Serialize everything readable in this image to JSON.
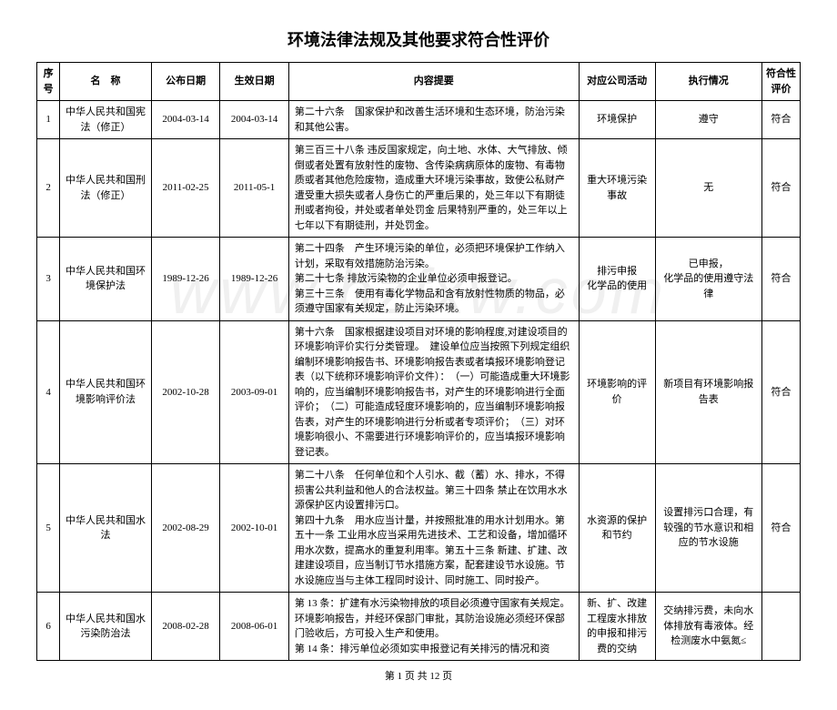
{
  "title": "环境法律法规及其他要求符合性评价",
  "watermark": "www.bzfxw.com",
  "columns": {
    "c1": "序号",
    "c2": "名　称",
    "c3": "公布日期",
    "c4": "生效日期",
    "c5": "内容提要",
    "c6": "对应公司活动",
    "c7": "执行情况",
    "c8": "符合性评价"
  },
  "widths": {
    "c1": "3%",
    "c2": "12%",
    "c3": "9%",
    "c4": "9%",
    "c5": "38%",
    "c6": "10%",
    "c7": "14%",
    "c8": "5%"
  },
  "rows": [
    {
      "no": "1",
      "name": "中华人民共和国宪法（修正）",
      "pub": "2004-03-14",
      "eff": "2004-03-14",
      "content": "第二十六条　国家保护和改善生活环境和生态环境，防治污染和其他公害。",
      "activity": "环境保护",
      "status": "遵守",
      "eval": "符合"
    },
    {
      "no": "2",
      "name": "中华人民共和国刑法（修正）",
      "pub": "2011-02-25",
      "eff": "2011-05-1",
      "content": "第三百三十八条 违反国家规定，向土地、水体、大气排放、倾倒或者处置有放射性的废物、含传染病病原体的废物、有毒物质或者其他危险废物，造成重大环境污染事故，致使公私财产遭受重大损失或者人身伤亡的严重后果的，处三年以下有期徒刑或者拘役，并处或者单处罚金 后果特别严重的，处三年以上七年以下有期徒刑，并处罚金。",
      "activity": "重大环境污染事故",
      "status": "无",
      "eval": "符合"
    },
    {
      "no": "3",
      "name": "中华人民共和国环境保护法",
      "pub": "1989-12-26",
      "eff": "1989-12-26",
      "content": "第二十四条　产生环境污染的单位，必须把环境保护工作纳入计划，采取有效措施防治污染。\n第二十七条 排放污染物的企业单位必须申报登记。\n第三十三条　使用有毒化学物品和含有放射性物质的物品，必须遵守国家有关规定，防止污染环境。",
      "activity": "排污申报\n化学品的使用",
      "status": "已申报，\n化学品的使用遵守法律",
      "eval": "符合"
    },
    {
      "no": "4",
      "name": "中华人民共和国环境影响评价法",
      "pub": "2002-10-28",
      "eff": "2003-09-01",
      "content": "第十六条　国家根据建设项目对环境的影响程度,对建设项目的环境影响评价实行分类管理。　建设单位应当按照下列规定组织编制环境影响报告书、环境影响报告表或者填报环境影响登记表（以下统称环境影响评价文件）：　（一）可能造成重大环境影响的，应当编制环境影响报告书，对产生的环境影响进行全面评价；　（二）可能造成轻度环境影响的，应当编制环境影响报告表，对产生的环境影响进行分析或者专项评价；　（三）对环境影响很小、不需要进行环境影响评价的，应当填报环境影响登记表。",
      "activity": "环境影响的评价",
      "status": "新项目有环境影响报告表",
      "eval": "符合"
    },
    {
      "no": "5",
      "name": "中华人民共和国水法",
      "pub": "2002-08-29",
      "eff": "2002-10-01",
      "content": "第二十八条　任何单位和个人引水、截（蓄）水、排水，不得损害公共利益和他人的合法权益。第三十四条 禁止在饮用水水源保护区内设置排污口。\n第四十九条　用水应当计量，并按照批准的用水计划用水。第五十一条 工业用水应当采用先进技术、工艺和设备，增加循环用水次数，提高水的重复利用率。第五十三条 新建、扩建、改建建设项目，应当制订节水措施方案，配套建设节水设施。节水设施应当与主体工程同时设计、同时施工、同时投产。",
      "activity": "水资源的保护和节约",
      "status": "设置排污口合理，有较强的节水意识和相应的节水设施",
      "eval": "符合"
    },
    {
      "no": "6",
      "name": "中华人民共和国水污染防治法",
      "pub": "2008-02-28",
      "eff": "2008-06-01",
      "content": "第 13 条：扩建有水污染物排放的项目必须遵守国家有关规定。环境影响报告，并经环保部门审批，其防治设施必须经环保部门验收后，方可投入生产和使用。\n第 14 条：排污单位必须如实申报登记有关排污的情况和资",
      "activity": "新、扩、改建工程废水排放的申报和排污费的交纳",
      "status": "交纳排污费，未向水体排放有毒液体。经检测废水中氨氮≤",
      "eval": ""
    }
  ],
  "pager": "第 1 页 共 12 页"
}
